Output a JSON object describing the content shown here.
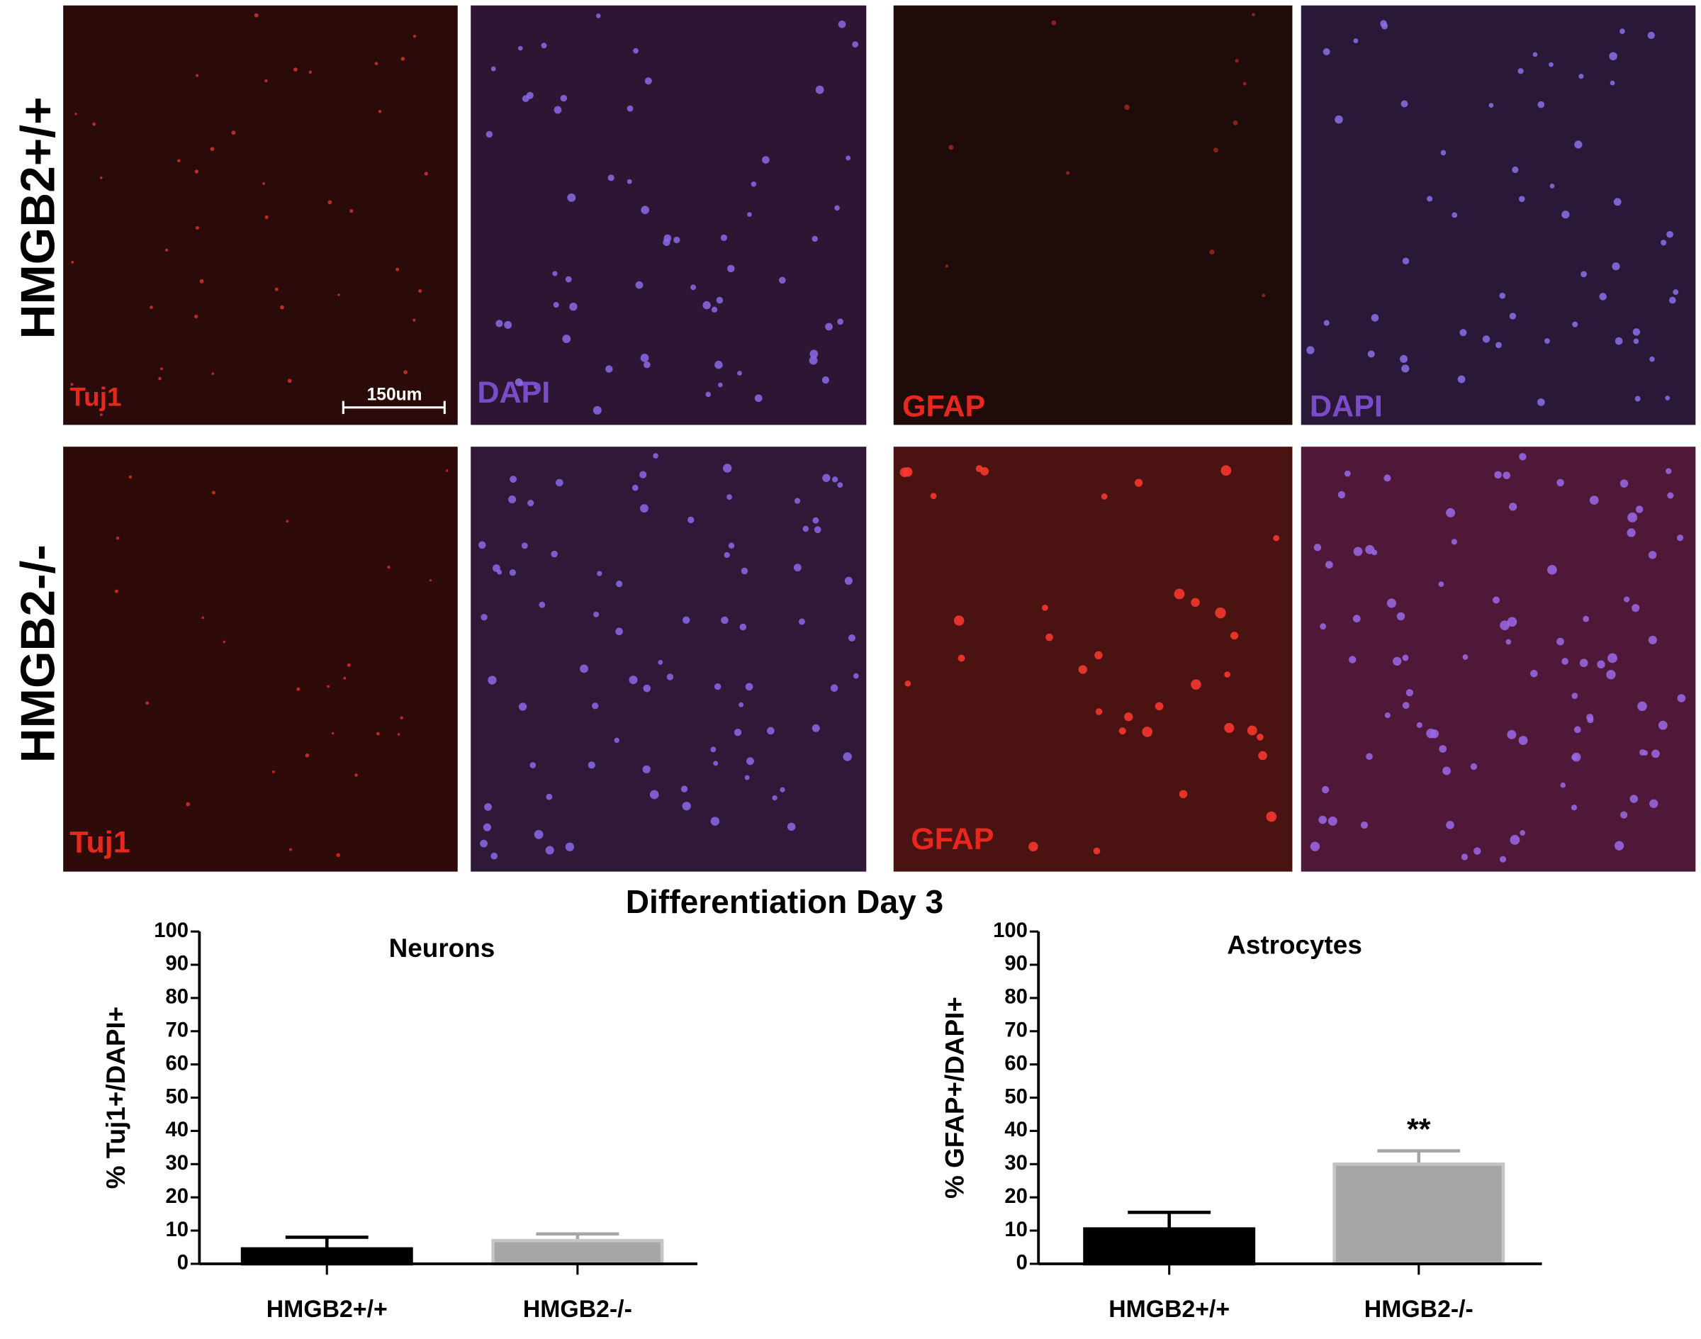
{
  "top_row": {
    "row_label": "HMGB2+/+",
    "stains": [
      "Tuj1",
      "DAPI",
      "GFAP",
      "DAPI"
    ],
    "scale_bar": "150um"
  },
  "bottom_row": {
    "row_label": "HMGB2-/-",
    "stains": [
      "Tuj1",
      "GFAP"
    ]
  },
  "figure_title": "Differentiation Day 3",
  "chart_data": [
    {
      "type": "bar",
      "title": "Neurons",
      "y_label": "% Tuj1+/DAPI+",
      "categories": [
        "HMGB2+/+",
        "HMGB2-/-"
      ],
      "values": [
        4.5,
        7
      ],
      "errors": [
        3.5,
        2
      ],
      "colors": [
        "#000000",
        "#a6a6a8"
      ],
      "ylim": [
        0,
        100
      ],
      "yticks": [
        0,
        10,
        20,
        30,
        40,
        50,
        60,
        70,
        80,
        90,
        100
      ]
    },
    {
      "type": "bar",
      "title": "Astrocytes",
      "y_label": "% GFAP+/DAPI+",
      "categories": [
        "HMGB2+/+",
        "HMGB2-/-"
      ],
      "values": [
        10.5,
        30
      ],
      "errors": [
        5,
        4
      ],
      "colors": [
        "#000000",
        "#a6a6a8"
      ],
      "ylim": [
        0,
        100
      ],
      "yticks": [
        0,
        10,
        20,
        30,
        40,
        50,
        60,
        70,
        80,
        90,
        100
      ],
      "annotation": "**"
    }
  ]
}
